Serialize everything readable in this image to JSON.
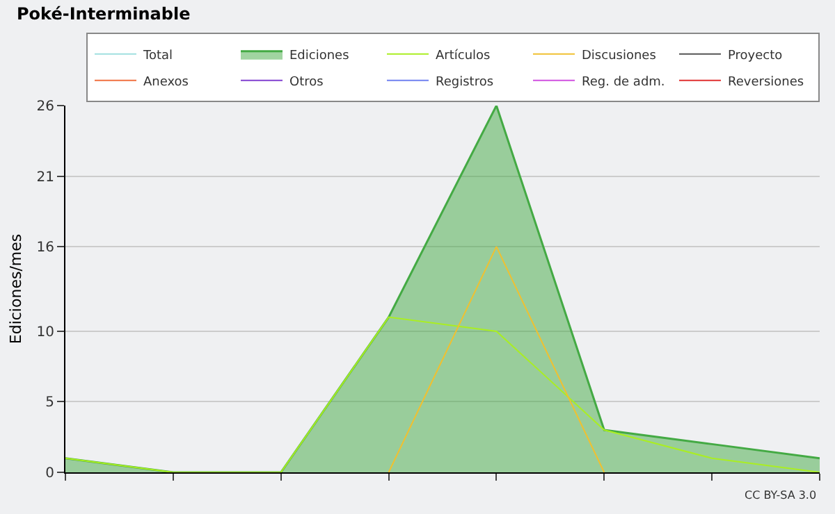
{
  "chart_data": {
    "type": "line",
    "title": "Poké-Interminable",
    "ylabel": "Ediciones/mes",
    "categories": [
      null,
      null,
      null,
      null,
      null,
      null,
      null,
      null
    ],
    "series": [
      {
        "name": "Total",
        "color": "#a0e0e0",
        "values": [
          null,
          null,
          null,
          null,
          null,
          null,
          null,
          null
        ]
      },
      {
        "name": "Ediciones",
        "color": "#44aa44",
        "type": "area",
        "values": [
          1,
          0,
          0,
          11,
          26,
          3,
          2,
          1
        ]
      },
      {
        "name": "Artículos",
        "color": "#aaee22",
        "values": [
          1,
          0,
          0,
          11,
          10,
          3,
          1,
          0
        ]
      },
      {
        "name": "Discusiones",
        "color": "#f0c030",
        "values": [
          null,
          null,
          null,
          0,
          16,
          0,
          null,
          null
        ]
      },
      {
        "name": "Proyecto",
        "color": "#555555",
        "values": [
          null,
          null,
          null,
          null,
          null,
          null,
          null,
          null
        ]
      },
      {
        "name": "Anexos",
        "color": "#f07040",
        "values": [
          null,
          null,
          null,
          null,
          null,
          null,
          null,
          null
        ]
      },
      {
        "name": "Otros",
        "color": "#8040d0",
        "values": [
          null,
          null,
          null,
          null,
          null,
          null,
          null,
          null
        ]
      },
      {
        "name": "Registros",
        "color": "#7080f0",
        "values": [
          null,
          null,
          null,
          null,
          null,
          null,
          null,
          null
        ]
      },
      {
        "name": "Reg. de adm.",
        "color": "#d050e0",
        "values": [
          null,
          null,
          null,
          null,
          null,
          null,
          null,
          null
        ]
      },
      {
        "name": "Reversiones",
        "color": "#e03030",
        "values": [
          null,
          null,
          null,
          null,
          null,
          null,
          null,
          null
        ]
      }
    ],
    "ylim": [
      0,
      26
    ],
    "yticks": [
      0,
      5,
      10,
      16,
      21,
      26
    ],
    "grid": "y",
    "legend": "top right",
    "annotations": [
      "CC BY-SA 3.0"
    ]
  }
}
